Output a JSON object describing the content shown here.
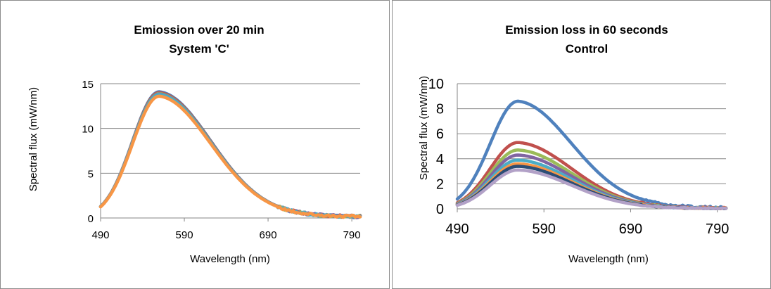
{
  "chart_data": [
    {
      "type": "line",
      "title_lines": [
        "Emiossion over 20 min",
        "System 'C'"
      ],
      "xlabel": "Wavelength (nm)",
      "ylabel": "Spectral flux (mW/nm)",
      "xlim": [
        490,
        800
      ],
      "ylim": [
        0,
        15
      ],
      "xticks": [
        490,
        590,
        690,
        790
      ],
      "yticks": [
        0,
        5,
        10,
        15
      ],
      "grid": true,
      "legend": "none",
      "series": [
        {
          "color": "#4F81BD",
          "peak": 14.1
        },
        {
          "color": "#C0504D",
          "peak": 14.0
        },
        {
          "color": "#9BBB59",
          "peak": 13.9
        },
        {
          "color": "#8064A2",
          "peak": 13.85
        },
        {
          "color": "#4BACC6",
          "peak": 13.8
        },
        {
          "color": "#F79646",
          "peak": 13.6
        }
      ]
    },
    {
      "type": "line",
      "title_lines": [
        "Emission loss in 60 seconds",
        "Control"
      ],
      "xlabel": "Wavelength (nm)",
      "ylabel": "Spectral flux (mW/nm)",
      "xlim": [
        490,
        800
      ],
      "ylim": [
        0,
        10
      ],
      "xticks": [
        490,
        590,
        690,
        790
      ],
      "yticks": [
        0,
        2,
        4,
        6,
        8,
        10
      ],
      "grid": true,
      "legend": "none",
      "series": [
        {
          "color": "#4F81BD",
          "peak": 8.6
        },
        {
          "color": "#C0504D",
          "peak": 5.3
        },
        {
          "color": "#9BBB59",
          "peak": 4.7
        },
        {
          "color": "#8064A2",
          "peak": 4.3
        },
        {
          "color": "#4BACC6",
          "peak": 3.9
        },
        {
          "color": "#F79646",
          "peak": 3.6
        },
        {
          "color": "#2C4D75",
          "peak": 3.4
        },
        {
          "color": "#B2A1C7",
          "peak": 3.1
        }
      ]
    }
  ]
}
